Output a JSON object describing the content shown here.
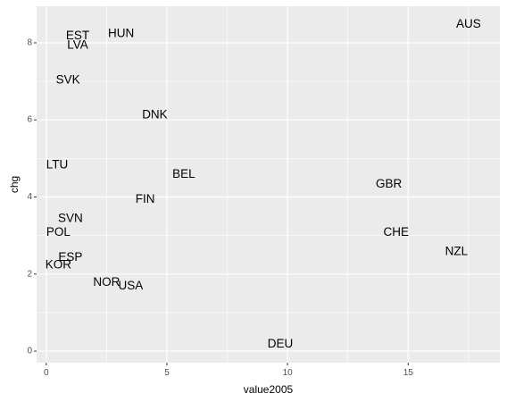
{
  "chart_data": {
    "type": "scatter",
    "xlabel": "value2005",
    "ylabel": "chg",
    "xlim": [
      -0.4,
      18.8
    ],
    "ylim": [
      -0.3,
      8.95
    ],
    "x_ticks": [
      0,
      5,
      10,
      15
    ],
    "y_ticks": [
      0,
      2,
      4,
      6,
      8
    ],
    "grid": true,
    "panel_background": "#ebebeb",
    "gridline_color": "#ffffff",
    "points": [
      {
        "label": "AUS",
        "x": 17.5,
        "y": 8.5
      },
      {
        "label": "HUN",
        "x": 3.1,
        "y": 8.25
      },
      {
        "label": "EST",
        "x": 1.3,
        "y": 8.2
      },
      {
        "label": "LVA",
        "x": 1.3,
        "y": 7.95
      },
      {
        "label": "SVK",
        "x": 0.9,
        "y": 7.05
      },
      {
        "label": "DNK",
        "x": 4.5,
        "y": 6.15
      },
      {
        "label": "LTU",
        "x": 0.45,
        "y": 4.85
      },
      {
        "label": "BEL",
        "x": 5.7,
        "y": 4.6
      },
      {
        "label": "GBR",
        "x": 14.2,
        "y": 4.35
      },
      {
        "label": "FIN",
        "x": 4.1,
        "y": 3.95
      },
      {
        "label": "SVN",
        "x": 1.0,
        "y": 3.45
      },
      {
        "label": "POL",
        "x": 0.5,
        "y": 3.1
      },
      {
        "label": "CHE",
        "x": 14.5,
        "y": 3.1
      },
      {
        "label": "NZL",
        "x": 17.0,
        "y": 2.6
      },
      {
        "label": "ESP",
        "x": 1.0,
        "y": 2.45
      },
      {
        "label": "KOR",
        "x": 0.5,
        "y": 2.25
      },
      {
        "label": "NOR",
        "x": 2.5,
        "y": 1.8
      },
      {
        "label": "USA",
        "x": 3.5,
        "y": 1.7
      },
      {
        "label": "DEU",
        "x": 9.7,
        "y": 0.2
      }
    ]
  }
}
